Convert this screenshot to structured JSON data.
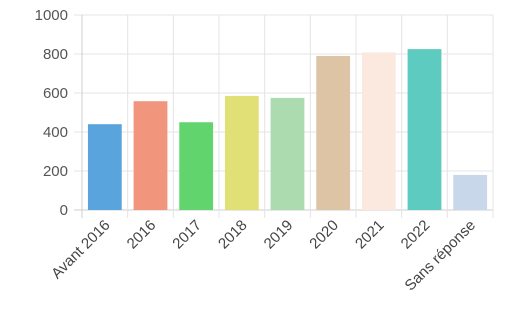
{
  "chart_data": {
    "type": "bar",
    "categories": [
      "Avant 2016",
      "2016",
      "2017",
      "2018",
      "2019",
      "2020",
      "2021",
      "2022",
      "Sans réponse"
    ],
    "values": [
      440,
      558,
      450,
      585,
      575,
      790,
      808,
      825,
      180
    ],
    "colors": [
      "#5aa4de",
      "#f2957d",
      "#61d46d",
      "#e1e077",
      "#addbb0",
      "#dcc4a5",
      "#fbe9df",
      "#5dcbc0",
      "#c8d8ea"
    ],
    "ylim": [
      0,
      1000
    ],
    "yticks": [
      0,
      200,
      400,
      600,
      800,
      1000
    ],
    "grid": true,
    "title": "",
    "xlabel": "",
    "ylabel": ""
  }
}
